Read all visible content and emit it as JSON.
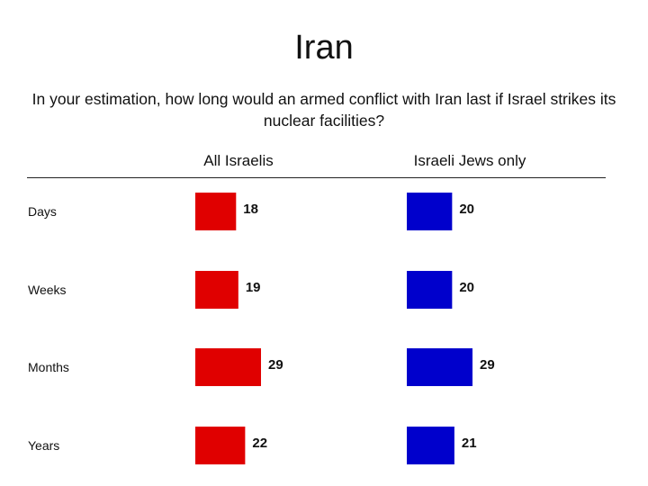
{
  "title": "Iran",
  "subtitle": "In your estimation, how long would an armed conflict with Iran last if Israel strikes its nuclear facilities?",
  "colors": {
    "all_israelis": "#e00000",
    "israeli_jews": "#0000cc"
  },
  "chart_data": {
    "type": "bar",
    "orientation": "horizontal",
    "title": "Iran",
    "subtitle": "In your estimation, how long would an armed conflict with Iran last if Israel strikes its nuclear facilities?",
    "categories": [
      "Days",
      "Weeks",
      "Months",
      "Years"
    ],
    "series": [
      {
        "name": "All Israelis",
        "values": [
          18,
          19,
          29,
          22
        ]
      },
      {
        "name": "Israeli Jews only",
        "values": [
          20,
          20,
          29,
          21
        ]
      }
    ],
    "xlim": [
      0,
      30
    ],
    "grid": false
  }
}
